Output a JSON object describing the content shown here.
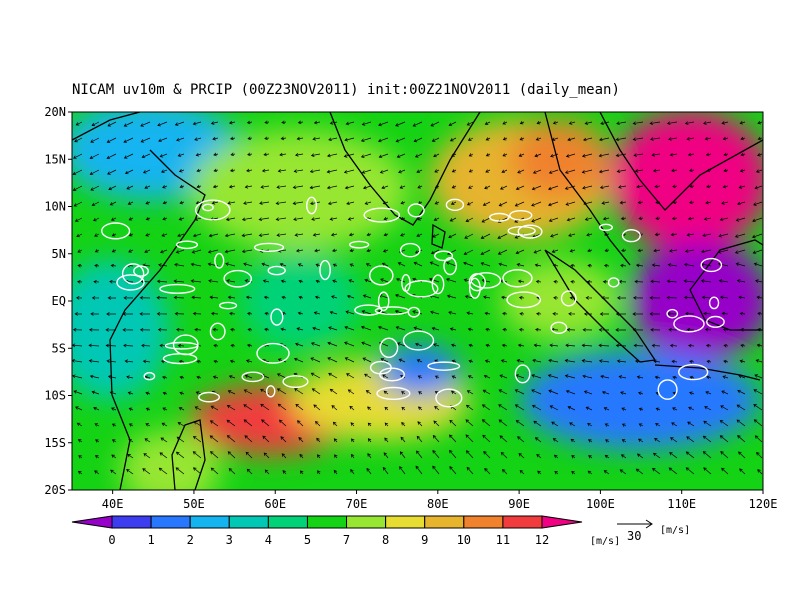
{
  "map": {
    "title": "NICAM uv10m & PRCIP (00Z23NOV2011) init:00Z21NOV2011 (daily_mean)",
    "lat_labels": [
      "20N",
      "15N",
      "10N",
      "5N",
      "EQ",
      "5S",
      "10S",
      "15S",
      "20S"
    ],
    "lon_labels": [
      "40E",
      "50E",
      "60E",
      "70E",
      "80E",
      "90E",
      "100E",
      "110E",
      "120E"
    ],
    "colorbar": {
      "ticks": [
        0,
        1,
        2,
        3,
        4,
        5,
        7,
        8,
        9,
        10,
        11,
        12
      ],
      "unit": "[m/s]",
      "colors": [
        "#9600c8",
        "#3c3cf0",
        "#2878ff",
        "#14b4f0",
        "#00c8b4",
        "#00d278",
        "#14d214",
        "#96e632",
        "#e6dc32",
        "#e6b42d",
        "#f0822d",
        "#f03c3c",
        "#f00082"
      ]
    },
    "reference_vector": {
      "value": "30",
      "unit": "[m/s]"
    }
  }
}
